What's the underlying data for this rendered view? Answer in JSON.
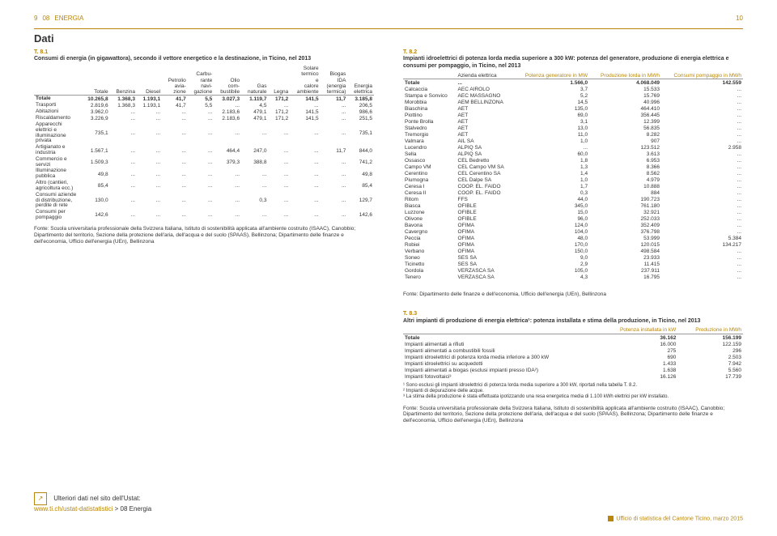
{
  "header": {
    "page_left": "9",
    "section_code": "08",
    "section_name": "ENERGIA",
    "page_right": "10"
  },
  "section_title": "Dati",
  "t81": {
    "num": "T. 8.1",
    "title": "Consumi di energia (in gigawattora), secondo il vettore energetico e la destinazione, in Ticino, nel 2013",
    "headers": [
      "",
      "Totale",
      "Benzina",
      "Diesel",
      "Petrolio avia-zione",
      "Carbu-rante navi-gazione",
      "Olio com-bustibile",
      "Gas naturale",
      "Legna",
      "Solare termico e calore ambiente",
      "Biogas IDA (energia termica)",
      "Energia elettrica"
    ],
    "rows": [
      {
        "bold": true,
        "c": [
          "Totale",
          "10.265,8",
          "1.368,3",
          "1.193,1",
          "41,7",
          "5,5",
          "3.027,3",
          "1.119,7",
          "171,2",
          "141,5",
          "11,7",
          "3.185,8"
        ]
      },
      {
        "c": [
          "Trasporti",
          "2.819,6",
          "1.368,3",
          "1.193,1",
          "41,7",
          "5,5",
          "...",
          "4,5",
          "...",
          "...",
          "...",
          "206,5"
        ]
      },
      {
        "c": [
          "Abitazioni",
          "3.962,0",
          "...",
          "...",
          "...",
          "...",
          "2.183,6",
          "479,1",
          "171,2",
          "141,5",
          "...",
          "986,6"
        ]
      },
      {
        "c": [
          "  Riscaldamento",
          "3.226,9",
          "...",
          "...",
          "...",
          "...",
          "2.183,6",
          "479,1",
          "171,2",
          "141,5",
          "...",
          "251,5"
        ]
      },
      {
        "c": [
          "  Apparecchi elettrici e illuminazione privata",
          "735,1",
          "...",
          "...",
          "...",
          "...",
          "...",
          "...",
          "...",
          "...",
          "...",
          "735,1"
        ]
      },
      {
        "c": [
          "Artigianato e industria",
          "1.567,1",
          "...",
          "...",
          "...",
          "...",
          "464,4",
          "247,0",
          "...",
          "...",
          "11,7",
          "844,0"
        ]
      },
      {
        "c": [
          "Commercio e servizi",
          "1.509,3",
          "...",
          "...",
          "...",
          "...",
          "379,3",
          "388,8",
          "...",
          "...",
          "...",
          "741,2"
        ]
      },
      {
        "c": [
          "Illuminazione pubblica",
          "49,8",
          "...",
          "...",
          "...",
          "...",
          "...",
          "...",
          "...",
          "...",
          "...",
          "49,8"
        ]
      },
      {
        "c": [
          "Altro (cantieri, agricoltura ecc.)",
          "85,4",
          "...",
          "...",
          "...",
          "...",
          "...",
          "...",
          "...",
          "...",
          "...",
          "85,4"
        ]
      },
      {
        "c": [
          "Consumi aziende di distribuzione, perdite di rete",
          "130,0",
          "...",
          "...",
          "...",
          "...",
          "...",
          "0,3",
          "...",
          "...",
          "...",
          "129,7"
        ]
      },
      {
        "c": [
          "Consumi per pompaggio",
          "142,6",
          "...",
          "...",
          "...",
          "...",
          "...",
          "...",
          "...",
          "...",
          "...",
          "142,6"
        ]
      }
    ],
    "fonte": "Fonte: Scuola universitaria professionale della Svizzera Italiana, Istituto di sostenibilità applicata all'ambiente costruito (ISAAC), Canobbio; Dipartimento del territorio, Sezione della protezione dell'aria, dell'acqua e del suolo (SPAAS), Bellinzona; Dipartimento delle finanze e dell'economia, Ufficio dell'energia (UEn), Bellinzona"
  },
  "t82": {
    "num": "T. 8.2",
    "title": "Impianti idroelettrici di potenza lorda media superiore a 300 kW: potenza del generatore, produzione di energia elettrica e consumi per pompaggio, in Ticino, nel 2013",
    "headers": [
      "",
      "Azienda elettrica",
      "Potenza generatore in MW",
      "Produzione lorda in MWh",
      "Consumi pompaggio in MWh"
    ],
    "rows": [
      {
        "bold": true,
        "c": [
          "Totale",
          "...",
          "1.566,0",
          "4.068.049",
          "142.559"
        ]
      },
      {
        "c": [
          "Calcaccia",
          "AEC AIROLO",
          "3,7",
          "15.533",
          "..."
        ]
      },
      {
        "c": [
          "Stampa e Sonvico",
          "AEC MASSAGNO",
          "5,2",
          "15.769",
          "..."
        ]
      },
      {
        "c": [
          "Morobbia",
          "AEM BELLINZONA",
          "14,5",
          "40.996",
          "..."
        ]
      },
      {
        "c": [
          "Biaschina",
          "AET",
          "135,0",
          "464.410",
          "..."
        ]
      },
      {
        "c": [
          "Piottino",
          "AET",
          "69,0",
          "356.445",
          "..."
        ]
      },
      {
        "c": [
          "Ponte Brolla",
          "AET",
          "3,1",
          "12.399",
          "..."
        ]
      },
      {
        "c": [
          "Stalvedro",
          "AET",
          "13,0",
          "56.835",
          "..."
        ]
      },
      {
        "c": [
          "Tremorgio",
          "AET",
          "11,0",
          "8.282",
          "..."
        ]
      },
      {
        "c": [
          "Valmara",
          "AIL SA",
          "1,0",
          "907",
          "..."
        ]
      },
      {
        "c": [
          "Lucendro",
          "ALPIQ SA",
          "...",
          "123.512",
          "2.958"
        ]
      },
      {
        "c": [
          "Sella",
          "ALPIQ SA",
          "60,0",
          "3.613",
          "..."
        ]
      },
      {
        "c": [
          "Ossasco",
          "CEL Bedretto",
          "1,8",
          "6.953",
          "..."
        ]
      },
      {
        "c": [
          "Campo VM",
          "CEL Campo VM SA",
          "1,3",
          "8.366",
          "..."
        ]
      },
      {
        "c": [
          "Cerentino",
          "CEL Cerentino SA",
          "1,4",
          "8.562",
          "..."
        ]
      },
      {
        "c": [
          "Piumogna",
          "CEL Dalpe SA",
          "1,0",
          "4.979",
          "..."
        ]
      },
      {
        "c": [
          "Ceresa I",
          "COOP. EL. FAIDO",
          "1,7",
          "10.888",
          "..."
        ]
      },
      {
        "c": [
          "Ceresa II",
          "COOP. EL. FAIDO",
          "0,3",
          "884",
          "..."
        ]
      },
      {
        "c": [
          "Ritom",
          "FFS",
          "44,0",
          "190.723",
          "..."
        ]
      },
      {
        "c": [
          "Biasca",
          "OFIBLE",
          "345,0",
          "761.180",
          "..."
        ]
      },
      {
        "c": [
          "Luzzone",
          "OFIBLE",
          "15,0",
          "32.921",
          "..."
        ]
      },
      {
        "c": [
          "Olivone",
          "OFIBLE",
          "96,0",
          "252.033",
          "..."
        ]
      },
      {
        "c": [
          "Bavona",
          "OFIMA",
          "124,0",
          "352.409",
          "..."
        ]
      },
      {
        "c": [
          "Cavergno",
          "OFIMA",
          "104,0",
          "376.798",
          "..."
        ]
      },
      {
        "c": [
          "Peccia",
          "OFIMA",
          "48,0",
          "53.999",
          "5.384"
        ]
      },
      {
        "c": [
          "Robiei",
          "OFIMA",
          "170,0",
          "120.015",
          "134.217"
        ]
      },
      {
        "c": [
          "Verbano",
          "OFIMA",
          "150,0",
          "498.584",
          "..."
        ]
      },
      {
        "c": [
          "Soneo",
          "SES SA",
          "9,0",
          "23.933",
          "..."
        ]
      },
      {
        "c": [
          "Ticinetto",
          "SES SA",
          "2,9",
          "11.415",
          "..."
        ]
      },
      {
        "c": [
          "Gordola",
          "VERZASCA SA",
          "105,0",
          "237.911",
          "..."
        ]
      },
      {
        "c": [
          "Tenero",
          "VERZASCA SA",
          "4,3",
          "16.795",
          "..."
        ]
      }
    ],
    "fonte": "Fonte: Dipartimento delle finanze e dell'economia, Ufficio dell'energia (UEn), Bellinzona"
  },
  "t83": {
    "num": "T. 8.3",
    "title": "Altri impianti di produzione di energia elettrica¹: potenza installata e stima della produzione, in Ticino, nel 2013",
    "headers": [
      "",
      "Potenza installata in kW",
      "Produzione in MWh"
    ],
    "rows": [
      {
        "bold": true,
        "c": [
          "Totale",
          "36.162",
          "156.199"
        ]
      },
      {
        "c": [
          "Impianti alimentati a rifiuti",
          "16.000",
          "122.159"
        ]
      },
      {
        "c": [
          "Impianti alimentati a combustibili fossili",
          "275",
          "296"
        ]
      },
      {
        "c": [
          "Impianti idroelettrici di potenza lorda media inferiore a 300 kW",
          "690",
          "2.503"
        ]
      },
      {
        "c": [
          "Impianti idroelettrici su acquedotti",
          "1.433",
          "7.942"
        ]
      },
      {
        "c": [
          "Impianti alimentati a biogas (esclusi impianti presso IDA²)",
          "1.638",
          "5.560"
        ]
      },
      {
        "c": [
          "Impianti fotovoltaici³",
          "16.126",
          "17.739"
        ]
      }
    ],
    "notes": [
      "¹ Sono esclusi gli impianti idroelettrici di potenza lorda media superiore a 300 kW, riportati nella tabella T. 8.2.",
      "² Impianti di depurazione delle acque.",
      "³ La stima della produzione è stata effettuata ipotizzando una resa energetica media di 1.100 kWh elettrici per kW installato."
    ],
    "fonte": "Fonte: Scuola universitaria professionale della Svizzera Italiana, Istituto di sostenibilità applicata all'ambiente costruito (ISAAC), Canobbio; Dipartimento del territorio, Sezione della protezione dell'aria, dell'acqua e del suolo (SPAAS), Bellinzona; Dipartimento delle finanze e dell'economia, Ufficio dell'energia (UEn), Bellinzona"
  },
  "footer": {
    "link_intro": "Ulteriori dati nel sito dell'Ustat:",
    "link_url": "www.ti.ch/ustat-datistatistici",
    "link_suffix": " > 08 Energia",
    "right": "Ufficio di statistica del Cantone Ticino, marzo 2015"
  },
  "colors": {
    "accent": "#b8860b",
    "text": "#333333",
    "bg": "#ffffff"
  }
}
